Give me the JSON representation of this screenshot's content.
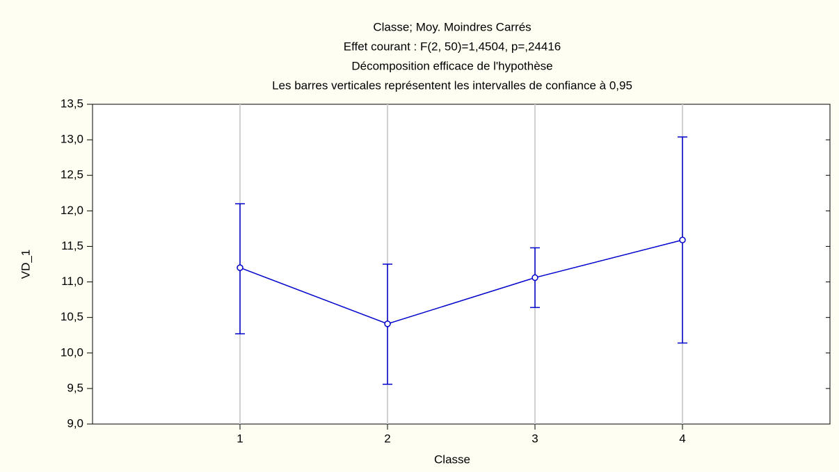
{
  "chart_data": {
    "type": "line",
    "title": [
      "Classe; Moy. Moindres Carrés",
      "Effet courant : F(2, 50)=1,4504, p=,24416",
      "Décomposition efficace de l'hypothèse",
      "Les barres verticales représentent les intervalles de confiance à 0,95"
    ],
    "x_label": "Classe",
    "y_label": "VD_1",
    "categories": [
      "1",
      "2",
      "3",
      "4"
    ],
    "series": [
      {
        "color": "#0000cc",
        "values": [
          11.2,
          10.41,
          11.06,
          11.59
        ],
        "ci_low": [
          10.27,
          9.56,
          10.64,
          10.14
        ],
        "ci_high": [
          12.1,
          11.25,
          11.48,
          13.04
        ]
      }
    ],
    "ylim": [
      9,
      13.5
    ],
    "yticks": [
      {
        "value": 9,
        "label": "9,0"
      },
      {
        "value": 9.5,
        "label": "9,5"
      },
      {
        "value": 10,
        "label": "10,0"
      },
      {
        "value": 10.5,
        "label": "10,5"
      },
      {
        "value": 11,
        "label": "11,0"
      },
      {
        "value": 11.5,
        "label": "11,5"
      },
      {
        "value": 12,
        "label": "12,0"
      },
      {
        "value": 12.5,
        "label": "12,5"
      },
      {
        "value": 13,
        "label": "13,0"
      },
      {
        "value": 13.5,
        "label": "13,5"
      }
    ],
    "grid": "x"
  }
}
